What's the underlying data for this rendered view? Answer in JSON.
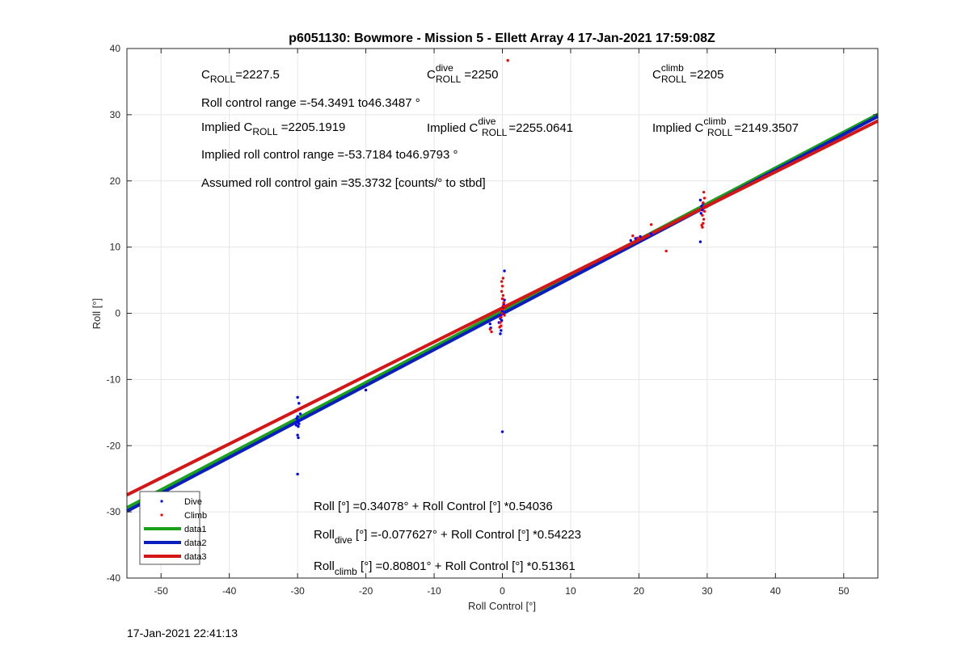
{
  "chart_data": {
    "type": "scatter",
    "title": "p6051130: Bowmore - Mission 5 - Ellett Array 4 17-Jan-2021 17:59:08Z",
    "xlabel": "Roll Control [°]",
    "ylabel": "Roll [°]",
    "xlim": [
      -55,
      55
    ],
    "ylim": [
      -40,
      40
    ],
    "xticks": [
      -50,
      -40,
      -30,
      -20,
      -10,
      0,
      10,
      20,
      30,
      40,
      50
    ],
    "yticks": [
      -40,
      -30,
      -20,
      -10,
      0,
      10,
      20,
      30,
      40
    ],
    "grid": true,
    "legend_position": "bottom-left",
    "colors": {
      "dive": "#0000ff",
      "climb": "#ff0000",
      "data1": "#1aa11a",
      "data2": "#0a1ebe",
      "data3": "#d41616"
    },
    "series": [
      {
        "name": "Dive",
        "kind": "points",
        "points": [
          [
            -30,
            -12.7
          ],
          [
            -29.8,
            -13.6
          ],
          [
            -29.6,
            -15.2
          ],
          [
            -30,
            -15.6
          ],
          [
            -30.1,
            -15.9
          ],
          [
            -29.9,
            -16.2
          ],
          [
            -30,
            -16.4
          ],
          [
            -29.8,
            -16.7
          ],
          [
            -30.2,
            -16.9
          ],
          [
            -29.9,
            -17.1
          ],
          [
            -30,
            -18.4
          ],
          [
            -29.9,
            -18.8
          ],
          [
            -30,
            -24.3
          ],
          [
            -20,
            -11.6
          ],
          [
            -1.8,
            -1.6
          ],
          [
            -1.7,
            -2.2
          ],
          [
            -0.5,
            -1.4
          ],
          [
            -0.3,
            -0.8
          ],
          [
            -0.2,
            -0.2
          ],
          [
            0,
            0.3
          ],
          [
            0.1,
            0.9
          ],
          [
            0.2,
            1.4
          ],
          [
            0.3,
            2.0
          ],
          [
            -0.1,
            -1.1
          ],
          [
            -0.2,
            -2.6
          ],
          [
            -0.3,
            -3.1
          ],
          [
            0,
            -17.9
          ],
          [
            0.3,
            6.4
          ],
          [
            18.8,
            11.0
          ],
          [
            19.5,
            11.3
          ],
          [
            20.2,
            11.6
          ],
          [
            21.8,
            12.0
          ],
          [
            29.0,
            10.8
          ],
          [
            29.1,
            15.1
          ],
          [
            29.3,
            15.6
          ],
          [
            29.2,
            16.2
          ],
          [
            29.0,
            17.1
          ],
          [
            29.4,
            16.6
          ]
        ]
      },
      {
        "name": "Climb",
        "kind": "points",
        "points": [
          [
            0.8,
            38.2
          ],
          [
            -1.8,
            -2.4
          ],
          [
            -1.6,
            -2.8
          ],
          [
            -0.4,
            -2.1
          ],
          [
            -0.3,
            -1.4
          ],
          [
            -0.2,
            -0.6
          ],
          [
            -0.1,
            0.0
          ],
          [
            0,
            0.6
          ],
          [
            0.1,
            1.1
          ],
          [
            0.2,
            1.6
          ],
          [
            0,
            2.2
          ],
          [
            0.1,
            2.7
          ],
          [
            -0.1,
            3.3
          ],
          [
            0,
            4.1
          ],
          [
            -0.1,
            4.8
          ],
          [
            0.1,
            5.3
          ],
          [
            -0.2,
            -1.9
          ],
          [
            0.3,
            -0.3
          ],
          [
            0.4,
            0.9
          ],
          [
            19.1,
            11.7
          ],
          [
            19.8,
            11.4
          ],
          [
            21.8,
            13.4
          ],
          [
            24.0,
            9.4
          ],
          [
            29.3,
            13.0
          ],
          [
            29.4,
            13.6
          ],
          [
            29.5,
            14.2
          ],
          [
            29.3,
            14.8
          ],
          [
            29.6,
            15.4
          ],
          [
            29.5,
            16.1
          ],
          [
            29.4,
            16.7
          ],
          [
            29.6,
            17.4
          ],
          [
            29.5,
            18.3
          ],
          [
            29.2,
            13.3
          ]
        ]
      },
      {
        "name": "data1",
        "kind": "line",
        "x": [
          -55,
          55
        ],
        "y": [
          -29.38,
          30.06
        ]
      },
      {
        "name": "data2",
        "kind": "line",
        "x": [
          -55,
          55
        ],
        "y": [
          -29.9,
          29.75
        ]
      },
      {
        "name": "data3",
        "kind": "line",
        "x": [
          -55,
          55
        ],
        "y": [
          -27.44,
          29.06
        ]
      }
    ]
  },
  "annotations": {
    "c_roll": {
      "base": "C",
      "sub": "ROLL",
      "text": "=2227.5"
    },
    "c_roll_dive": {
      "base": "C",
      "sup": "dive",
      "sub": "ROLL",
      "text": "=2250"
    },
    "c_roll_climb": {
      "base": "C",
      "sup": "climb",
      "sub": "ROLL",
      "text": "=2205"
    },
    "roll_control_range": "Roll control range =-54.3491 to46.3487 °",
    "implied_c_roll": {
      "prefix": "Implied C",
      "sub": "ROLL",
      "text": "=2205.1919"
    },
    "implied_c_roll_dive": {
      "prefix": "Implied C",
      "sup": "dive",
      "sub": "ROLL",
      "text": "=2255.0641"
    },
    "implied_c_roll_climb": {
      "prefix": "Implied C",
      "sup": "climb",
      "sub": "ROLL",
      "text": "=2149.3507"
    },
    "implied_range": "Implied roll control range =-53.7184 to46.9793 °",
    "gain": "Assumed roll control gain =35.3732 [counts/° to stbd]",
    "fit_all": "Roll [°] =0.34078° + Roll Control [°] *0.54036",
    "fit_dive": {
      "base": "Roll",
      "sub": "dive",
      "text": " [°] =-0.077627° + Roll Control [°] *0.54223"
    },
    "fit_climb": {
      "base": "Roll",
      "sub": "climb",
      "text": " [°] =0.80801° + Roll Control [°] *0.51361"
    }
  },
  "footer": "17-Jan-2021 22:41:13"
}
